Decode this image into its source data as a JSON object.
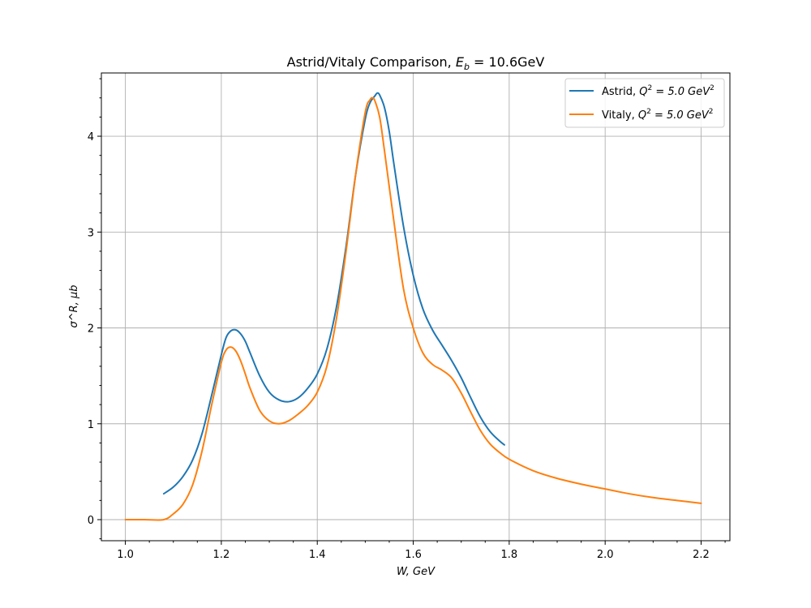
{
  "chart_data": {
    "type": "line",
    "title": "Astrid/Vitaly Comparison, E_b = 10.6GeV",
    "title_parts": {
      "prefix": "Astrid/Vitaly Comparison, ",
      "var": "E",
      "sub": "b",
      "suffix": " = 10.6GeV"
    },
    "xlabel": "W, GeV",
    "ylabel": "σ^R, μb",
    "xlim": [
      0.95,
      2.26
    ],
    "ylim": [
      -0.22,
      4.66
    ],
    "xticks": [
      1.0,
      1.2,
      1.4,
      1.6,
      1.8,
      2.0,
      2.2
    ],
    "xtick_labels": [
      "1.0",
      "1.2",
      "1.4",
      "1.6",
      "1.8",
      "2.0",
      "2.2"
    ],
    "yticks": [
      0,
      1,
      2,
      3,
      4
    ],
    "ytick_labels": [
      "0",
      "1",
      "2",
      "3",
      "4"
    ],
    "grid": true,
    "legend_position": "top-right",
    "series": [
      {
        "name": "Astrid, Q^2 = 5.0 GeV^2",
        "legend_parts": {
          "prefix": "Astrid, ",
          "var": "Q",
          "sup": "2",
          "mid": " = 5.0 GeV",
          "sup2": "2"
        },
        "color": "#1f77b4",
        "x": [
          1.08,
          1.1,
          1.12,
          1.14,
          1.16,
          1.18,
          1.2,
          1.21,
          1.22,
          1.23,
          1.24,
          1.25,
          1.26,
          1.28,
          1.3,
          1.32,
          1.34,
          1.36,
          1.38,
          1.4,
          1.42,
          1.44,
          1.46,
          1.48,
          1.5,
          1.51,
          1.52,
          1.525,
          1.53,
          1.54,
          1.55,
          1.56,
          1.58,
          1.6,
          1.62,
          1.64,
          1.66,
          1.68,
          1.7,
          1.72,
          1.74,
          1.76,
          1.78,
          1.79
        ],
        "y": [
          0.27,
          0.34,
          0.45,
          0.62,
          0.9,
          1.3,
          1.72,
          1.9,
          1.97,
          1.98,
          1.94,
          1.86,
          1.74,
          1.5,
          1.33,
          1.25,
          1.23,
          1.27,
          1.37,
          1.52,
          1.78,
          2.22,
          2.85,
          3.6,
          4.18,
          4.35,
          4.42,
          4.45,
          4.43,
          4.3,
          4.05,
          3.7,
          3.05,
          2.55,
          2.2,
          1.98,
          1.82,
          1.66,
          1.48,
          1.27,
          1.07,
          0.92,
          0.82,
          0.78
        ]
      },
      {
        "name": "Vitaly, Q^2 = 5.0 GeV^2",
        "legend_parts": {
          "prefix": "Vitaly, ",
          "var": "Q",
          "sup": "2",
          "mid": " = 5.0 GeV",
          "sup2": "2"
        },
        "color": "#ff7f0e",
        "x": [
          1.0,
          1.04,
          1.08,
          1.1,
          1.12,
          1.14,
          1.16,
          1.18,
          1.2,
          1.21,
          1.22,
          1.23,
          1.24,
          1.25,
          1.26,
          1.28,
          1.3,
          1.32,
          1.34,
          1.36,
          1.38,
          1.4,
          1.42,
          1.44,
          1.46,
          1.48,
          1.5,
          1.51,
          1.515,
          1.52,
          1.53,
          1.54,
          1.56,
          1.58,
          1.6,
          1.62,
          1.64,
          1.66,
          1.68,
          1.7,
          1.72,
          1.74,
          1.76,
          1.78,
          1.8,
          1.85,
          1.9,
          1.95,
          2.0,
          2.05,
          2.1,
          2.15,
          2.2
        ],
        "y": [
          0.0,
          0.0,
          0.0,
          0.06,
          0.16,
          0.36,
          0.72,
          1.2,
          1.64,
          1.77,
          1.8,
          1.76,
          1.66,
          1.52,
          1.37,
          1.14,
          1.03,
          1.0,
          1.03,
          1.1,
          1.19,
          1.33,
          1.6,
          2.1,
          2.8,
          3.6,
          4.25,
          4.38,
          4.4,
          4.37,
          4.2,
          3.85,
          3.1,
          2.4,
          2.0,
          1.74,
          1.62,
          1.56,
          1.48,
          1.32,
          1.12,
          0.93,
          0.79,
          0.7,
          0.63,
          0.51,
          0.43,
          0.37,
          0.32,
          0.27,
          0.23,
          0.2,
          0.17
        ]
      }
    ]
  }
}
